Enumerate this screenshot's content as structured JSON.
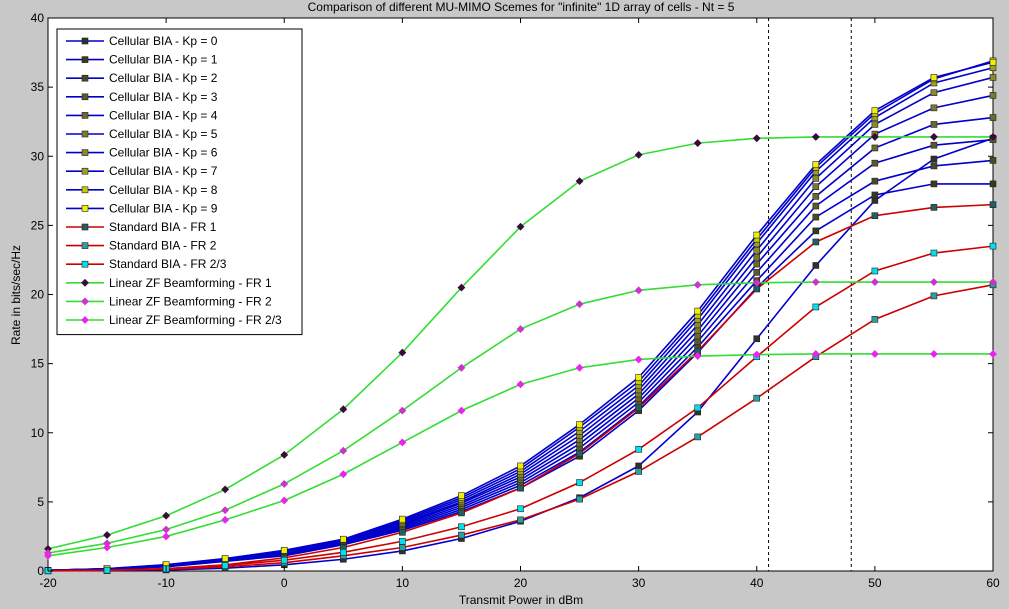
{
  "chart_data": {
    "type": "line",
    "title": "Comparison of different MU-MIMO Scemes for \"infinite\" 1D array of cells - Nt = 5",
    "xlabel": "Transmit Power in dBm",
    "ylabel": "Rate in bits/sec/Hz",
    "xlim": [
      -20,
      60
    ],
    "ylim": [
      0,
      40
    ],
    "xticks": [
      -20,
      -10,
      0,
      10,
      20,
      30,
      40,
      50,
      60
    ],
    "yticks": [
      0,
      5,
      10,
      15,
      20,
      25,
      30,
      35,
      40
    ],
    "grid": false,
    "legend_position": "top-left",
    "vlines": [
      41,
      48
    ],
    "x": [
      -20,
      -15,
      -10,
      -5,
      0,
      5,
      10,
      15,
      20,
      25,
      30,
      35,
      40,
      45,
      50,
      55,
      60
    ],
    "series": [
      {
        "name": "Cellular BIA - Kp = 0",
        "color": "#0000cc",
        "marker_color": "#303030",
        "marker": "square",
        "values": [
          0.01,
          0.03,
          0.08,
          0.2,
          0.45,
          0.85,
          1.45,
          2.35,
          3.6,
          5.3,
          7.6,
          11.5,
          16.8,
          22.1,
          26.8,
          29.8,
          31.3
        ]
      },
      {
        "name": "Cellular BIA - Kp = 1",
        "color": "#0000cc",
        "marker_color": "#3a3a1a",
        "marker": "square",
        "values": [
          0.05,
          0.12,
          0.3,
          0.7,
          1.1,
          1.9,
          2.95,
          4.3,
          6.0,
          8.3,
          11.6,
          15.8,
          20.5,
          24.6,
          27.2,
          28.0,
          28.0
        ]
      },
      {
        "name": "Cellular BIA - Kp = 2",
        "color": "#0000cc",
        "marker_color": "#4a4a20",
        "marker": "square",
        "values": [
          0.05,
          0.13,
          0.32,
          0.72,
          1.15,
          1.95,
          3.05,
          4.45,
          6.2,
          8.6,
          11.9,
          16.2,
          21.0,
          25.6,
          28.2,
          29.3,
          29.7
        ]
      },
      {
        "name": "Cellular BIA - Kp = 3",
        "color": "#0000cc",
        "marker_color": "#5a5a28",
        "marker": "square",
        "values": [
          0.05,
          0.14,
          0.34,
          0.75,
          1.2,
          2.0,
          3.15,
          4.6,
          6.4,
          8.9,
          12.2,
          16.6,
          21.6,
          26.4,
          29.5,
          30.8,
          31.2
        ]
      },
      {
        "name": "Cellular BIA - Kp = 4",
        "color": "#0000cc",
        "marker_color": "#6a6a2a",
        "marker": "square",
        "values": [
          0.05,
          0.14,
          0.36,
          0.78,
          1.25,
          2.05,
          3.25,
          4.75,
          6.6,
          9.2,
          12.5,
          17.0,
          22.2,
          27.1,
          30.6,
          32.3,
          32.8
        ]
      },
      {
        "name": "Cellular BIA - Kp = 5",
        "color": "#0000cc",
        "marker_color": "#7a7a2c",
        "marker": "square",
        "values": [
          0.05,
          0.15,
          0.38,
          0.8,
          1.3,
          2.1,
          3.35,
          4.9,
          6.8,
          9.5,
          12.8,
          17.4,
          22.7,
          27.8,
          31.6,
          33.5,
          34.4
        ]
      },
      {
        "name": "Cellular BIA - Kp = 6",
        "color": "#0000cc",
        "marker_color": "#8a8a2a",
        "marker": "square",
        "values": [
          0.05,
          0.15,
          0.4,
          0.82,
          1.35,
          2.15,
          3.45,
          5.0,
          7.0,
          9.8,
          13.1,
          17.8,
          23.2,
          28.4,
          32.3,
          34.6,
          35.7
        ]
      },
      {
        "name": "Cellular BIA - Kp = 7",
        "color": "#0000cc",
        "marker_color": "#a0a020",
        "marker": "square",
        "values": [
          0.05,
          0.16,
          0.42,
          0.85,
          1.4,
          2.2,
          3.55,
          5.15,
          7.2,
          10.1,
          13.4,
          18.2,
          23.7,
          28.9,
          32.8,
          35.3,
          36.4
        ]
      },
      {
        "name": "Cellular BIA - Kp = 8",
        "color": "#0000cc",
        "marker_color": "#c8c800",
        "marker": "square",
        "values": [
          0.05,
          0.16,
          0.44,
          0.87,
          1.45,
          2.25,
          3.65,
          5.3,
          7.4,
          10.4,
          13.7,
          18.5,
          24.0,
          29.2,
          33.1,
          35.6,
          36.9
        ]
      },
      {
        "name": "Cellular BIA - Kp = 9",
        "color": "#0000cc",
        "marker_color": "#f0f000",
        "marker": "square",
        "values": [
          0.05,
          0.17,
          0.46,
          0.9,
          1.5,
          2.3,
          3.75,
          5.45,
          7.6,
          10.6,
          14.0,
          18.8,
          24.3,
          29.4,
          33.3,
          35.7,
          36.8
        ]
      },
      {
        "name": "Standard BIA - FR 1",
        "color": "#cc0000",
        "marker_color": "#206060",
        "marker": "square",
        "values": [
          0.02,
          0.06,
          0.17,
          0.45,
          0.95,
          1.7,
          2.8,
          4.2,
          6.0,
          8.5,
          11.8,
          15.9,
          20.4,
          23.8,
          25.7,
          26.3,
          26.5
        ]
      },
      {
        "name": "Standard BIA - FR 2",
        "color": "#cc0000",
        "marker_color": "#2aa0a0",
        "marker": "square",
        "values": [
          0.02,
          0.05,
          0.12,
          0.3,
          0.6,
          1.1,
          1.7,
          2.6,
          3.7,
          5.2,
          7.2,
          9.7,
          12.5,
          15.5,
          18.2,
          19.9,
          20.7
        ]
      },
      {
        "name": "Standard BIA - FR 2/3",
        "color": "#cc0000",
        "marker_color": "#00e0f0",
        "marker": "square",
        "values": [
          0.02,
          0.06,
          0.16,
          0.4,
          0.78,
          1.35,
          2.15,
          3.2,
          4.5,
          6.4,
          8.8,
          11.8,
          15.5,
          19.1,
          21.7,
          23.0,
          23.5
        ]
      },
      {
        "name": "Linear ZF Beamforming - FR 1",
        "color": "#33dd33",
        "marker_color": "#3a0a3a",
        "marker": "diamond",
        "values": [
          1.6,
          2.6,
          4.0,
          5.9,
          8.4,
          11.7,
          15.8,
          20.5,
          24.9,
          28.2,
          30.1,
          30.95,
          31.3,
          31.4,
          31.4,
          31.4,
          31.4
        ]
      },
      {
        "name": "Linear ZF Beamforming - FR 2",
        "color": "#33dd33",
        "marker_color": "#cc33cc",
        "marker": "diamond",
        "values": [
          1.3,
          2.0,
          3.0,
          4.4,
          6.3,
          8.7,
          11.6,
          14.7,
          17.5,
          19.3,
          20.3,
          20.7,
          20.85,
          20.9,
          20.9,
          20.9,
          20.9
        ]
      },
      {
        "name": "Linear ZF Beamforming - FR 2/3",
        "color": "#33dd33",
        "marker_color": "#ee22ee",
        "marker": "diamond",
        "values": [
          1.1,
          1.7,
          2.5,
          3.7,
          5.1,
          7.0,
          9.3,
          11.6,
          13.5,
          14.7,
          15.3,
          15.55,
          15.65,
          15.7,
          15.7,
          15.7,
          15.7
        ]
      }
    ]
  }
}
